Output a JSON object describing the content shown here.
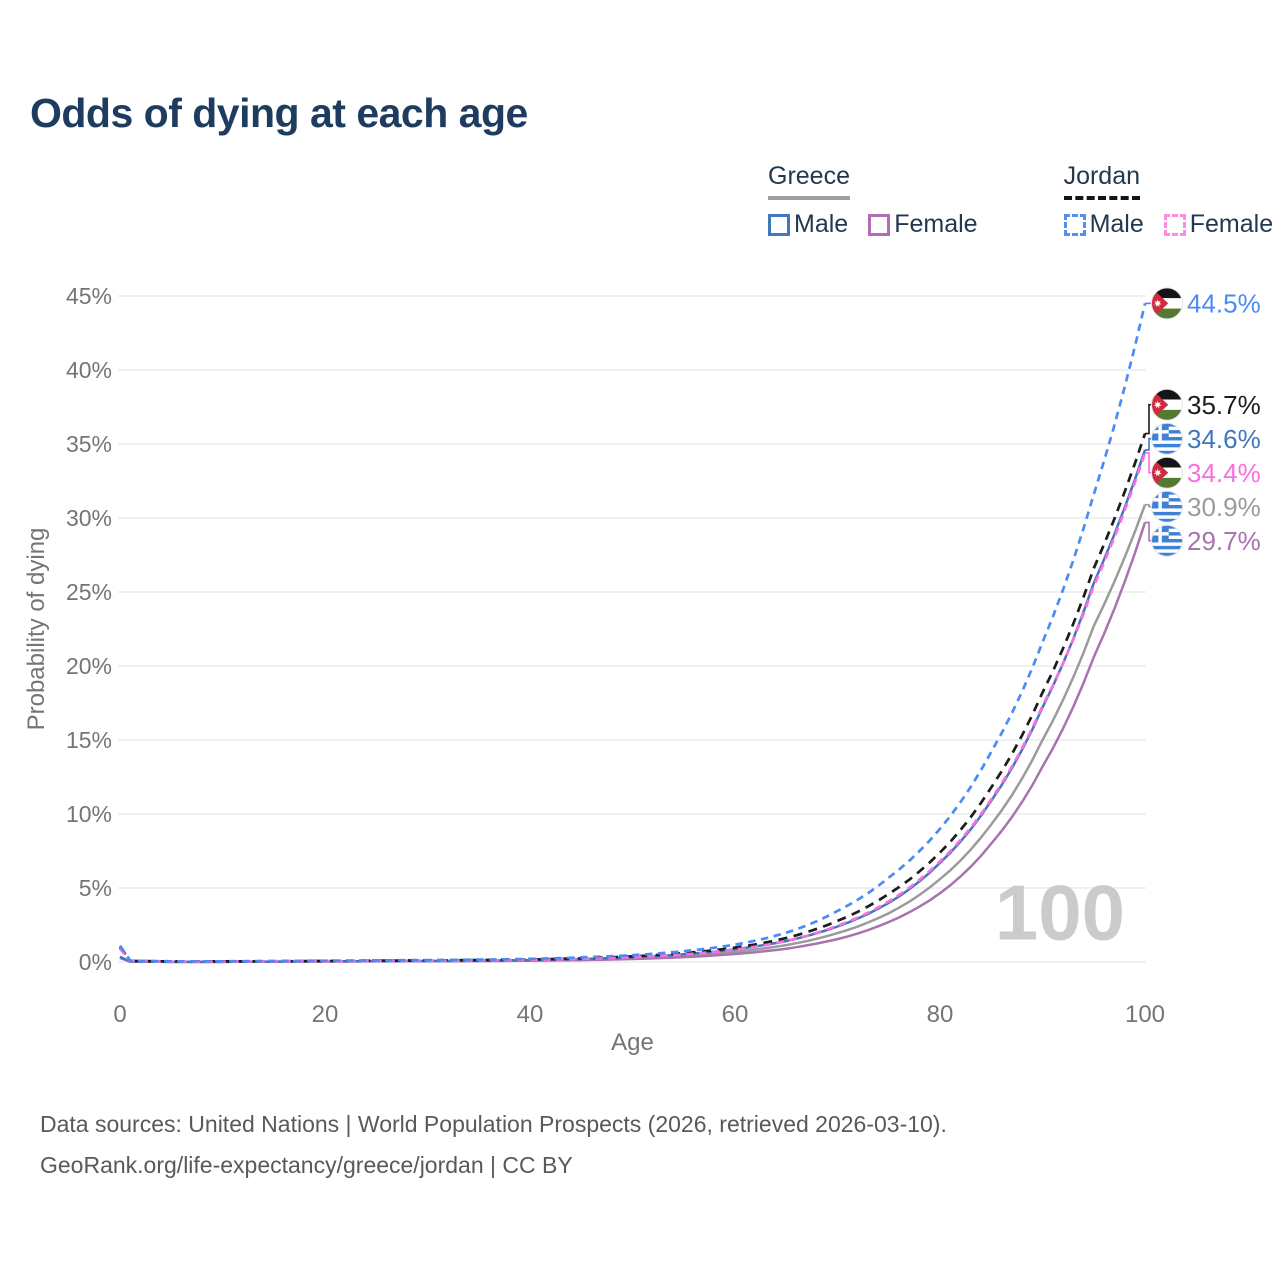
{
  "title": "Odds of dying at each age",
  "legend": {
    "groups": [
      {
        "id": "greece",
        "label": "Greece",
        "line_style": "solid",
        "line_color": "#9e9e9e",
        "items": [
          {
            "label": "Male",
            "swatch_color": "#4277bd",
            "swatch_style": "solid"
          },
          {
            "label": "Female",
            "swatch_color": "#b46cb4",
            "swatch_style": "solid"
          }
        ]
      },
      {
        "id": "jordan",
        "label": "Jordan",
        "line_style": "dashed",
        "line_color": "#141414",
        "items": [
          {
            "label": "Male",
            "swatch_color": "#5a8df2",
            "swatch_style": "dashed"
          },
          {
            "label": "Female",
            "swatch_color": "#ff8ce1",
            "swatch_style": "dashed"
          }
        ]
      }
    ]
  },
  "chart_data": {
    "type": "line",
    "title": "Odds of dying at each age",
    "xlabel": "Age",
    "ylabel": "Probability of dying",
    "xlim": [
      0,
      100
    ],
    "ylim_percent": [
      0,
      45
    ],
    "x_ticks": [
      0,
      20,
      40,
      60,
      80,
      100
    ],
    "x_tick_labels": [
      "0",
      "20",
      "40",
      "60",
      "80",
      "100"
    ],
    "y_ticks_percent": [
      0,
      5,
      10,
      15,
      20,
      25,
      30,
      35,
      40,
      45
    ],
    "y_tick_labels": [
      "0%",
      "5%",
      "10%",
      "15%",
      "20%",
      "25%",
      "30%",
      "35%",
      "40%",
      "45%"
    ],
    "grid": "horizontal",
    "legend_position": "top-right",
    "watermark": "100",
    "ages": [
      0,
      1,
      5,
      10,
      15,
      20,
      25,
      30,
      35,
      40,
      45,
      50,
      55,
      60,
      65,
      70,
      75,
      80,
      85,
      90,
      95,
      100
    ],
    "series": [
      {
        "id": "greece-both",
        "name": "Greece (both sexes)",
        "country": "Greece",
        "sex": "Both",
        "color": "#9b9b9b",
        "dash": "solid",
        "flag": "greece",
        "end_value_percent": 30.9,
        "end_label": "30.9%",
        "values_percent": [
          0.3,
          0.02,
          0.01,
          0.01,
          0.02,
          0.04,
          0.05,
          0.06,
          0.08,
          0.11,
          0.16,
          0.26,
          0.42,
          0.69,
          1.14,
          1.95,
          3.3,
          5.6,
          9.3,
          15.0,
          22.7,
          30.9
        ]
      },
      {
        "id": "greece-female",
        "name": "Greece Female",
        "country": "Greece",
        "sex": "Female",
        "color": "#a873ae",
        "dash": "solid",
        "flag": "greece",
        "end_value_percent": 29.7,
        "end_label": "29.7%",
        "values_percent": [
          0.28,
          0.02,
          0.01,
          0.01,
          0.02,
          0.03,
          0.04,
          0.05,
          0.06,
          0.09,
          0.13,
          0.2,
          0.33,
          0.54,
          0.9,
          1.55,
          2.7,
          4.65,
          8.0,
          13.2,
          20.6,
          29.7
        ]
      },
      {
        "id": "greece-male",
        "name": "Greece Male",
        "country": "Greece",
        "sex": "Male",
        "color": "#4277bd",
        "dash": "solid",
        "flag": "greece",
        "end_value_percent": 34.6,
        "end_label": "34.6%",
        "values_percent": [
          0.35,
          0.03,
          0.01,
          0.01,
          0.03,
          0.05,
          0.06,
          0.07,
          0.09,
          0.13,
          0.2,
          0.32,
          0.52,
          0.86,
          1.42,
          2.4,
          4.0,
          6.7,
          10.9,
          17.2,
          25.6,
          34.6
        ]
      },
      {
        "id": "jordan-both",
        "name": "Jordan (both sexes)",
        "country": "Jordan",
        "sex": "Both",
        "color": "#1c1c1c",
        "dash": "dashed",
        "flag": "jordan",
        "end_value_percent": 35.7,
        "end_label": "35.7%",
        "values_percent": [
          1.0,
          0.08,
          0.04,
          0.04,
          0.05,
          0.07,
          0.09,
          0.11,
          0.13,
          0.17,
          0.25,
          0.38,
          0.6,
          0.97,
          1.62,
          2.78,
          4.6,
          7.4,
          11.8,
          18.2,
          26.6,
          35.7
        ]
      },
      {
        "id": "jordan-female",
        "name": "Jordan Female",
        "country": "Jordan",
        "sex": "Female",
        "color": "#fa6fe0",
        "dash": "dashed",
        "flag": "jordan",
        "end_value_percent": 34.4,
        "end_label": "34.4%",
        "values_percent": [
          0.9,
          0.07,
          0.03,
          0.03,
          0.04,
          0.06,
          0.07,
          0.09,
          0.11,
          0.14,
          0.21,
          0.32,
          0.51,
          0.84,
          1.42,
          2.45,
          4.1,
          6.8,
          11.0,
          17.3,
          25.4,
          34.4
        ]
      },
      {
        "id": "jordan-male",
        "name": "Jordan Male",
        "country": "Jordan",
        "sex": "Male",
        "color": "#4b8bf5",
        "dash": "dashed",
        "flag": "jordan",
        "end_value_percent": 44.5,
        "end_label": "44.5%",
        "values_percent": [
          1.1,
          0.09,
          0.05,
          0.05,
          0.07,
          0.09,
          0.11,
          0.13,
          0.16,
          0.21,
          0.31,
          0.46,
          0.73,
          1.17,
          1.98,
          3.45,
          5.7,
          9.0,
          14.2,
          21.6,
          31.6,
          44.5
        ]
      }
    ]
  },
  "footer": {
    "line1": "Data sources: United Nations | World Population Prospects (2026, retrieved 2026-03-10).",
    "line2": "GeoRank.org/life-expectancy/greece/jordan | CC BY"
  }
}
